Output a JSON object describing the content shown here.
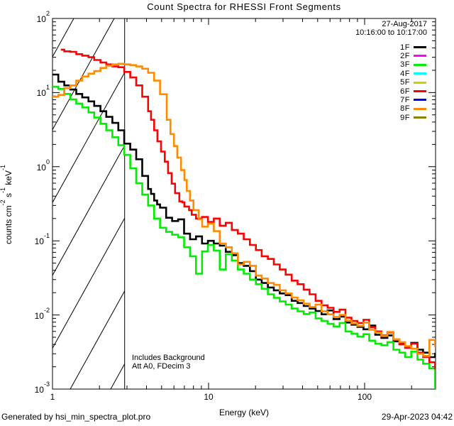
{
  "title": "Count Spectra for RHESSI Front Segments",
  "header": {
    "date": "27-Aug-2017",
    "time_range": "10:16:00 to 10:17:00"
  },
  "legend": [
    {
      "id": "1F",
      "label": "1F",
      "color": "#000000"
    },
    {
      "id": "2F",
      "label": "2F",
      "color": "#ff00ff"
    },
    {
      "id": "3F",
      "label": "3F",
      "color": "#00ee00"
    },
    {
      "id": "4F",
      "label": "4F",
      "color": "#00ffff"
    },
    {
      "id": "5F",
      "label": "5F",
      "color": "#cdcd00"
    },
    {
      "id": "6F",
      "label": "6F",
      "color": "#ff0000"
    },
    {
      "id": "7F",
      "label": "7F",
      "color": "#0000ff"
    },
    {
      "id": "8F",
      "label": "8F",
      "color": "#ff8c00"
    },
    {
      "id": "9F",
      "label": "9F",
      "color": "#8b8000"
    }
  ],
  "annotations": {
    "line1": "Includes Background",
    "line2": "Att A0, FDecim 3"
  },
  "footer": {
    "left": "Generated by hsi_min_spectra_plot.pro",
    "right": "29-Apr-2023 04:42"
  },
  "chart_data": {
    "type": "line",
    "subtype": "histogram-steps-loglog",
    "xlabel": "Energy (keV)",
    "ylabel": "counts cm^-2 s^-1 keV^-1",
    "ylabel_parts": [
      {
        "t": "counts cm"
      },
      {
        "sup": "-2"
      },
      {
        "t": " s"
      },
      {
        "sup": "-1"
      },
      {
        "t": " keV"
      },
      {
        "sup": "-1"
      }
    ],
    "xlim": [
      1,
      285
    ],
    "ylim": [
      0.001,
      100
    ],
    "x_ticks": [
      1,
      10,
      100
    ],
    "y_tick_exponents": [
      2,
      1,
      0,
      -1,
      -2,
      -3
    ],
    "grid": false,
    "legend_position": "top-right-inside",
    "hatched_region_kev": [
      1.0,
      2.9
    ],
    "hatch_note": "diagonal-hatched background region below 3 keV",
    "series": [
      {
        "name": "1F",
        "color": "#000000",
        "visible": true,
        "points": [
          [
            1.0,
            17.5
          ],
          [
            1.09,
            14.0
          ],
          [
            1.19,
            12.5
          ],
          [
            1.3,
            11.0
          ],
          [
            1.42,
            9.6
          ],
          [
            1.55,
            8.6
          ],
          [
            1.7,
            7.6
          ],
          [
            1.85,
            6.6
          ],
          [
            2.03,
            5.6
          ],
          [
            2.21,
            4.7
          ],
          [
            2.42,
            3.9
          ],
          [
            2.64,
            3.1
          ],
          [
            2.88,
            2.05
          ],
          [
            3.15,
            1.7
          ],
          [
            3.44,
            1.26
          ],
          [
            3.76,
            0.75
          ],
          [
            4.1,
            0.5
          ],
          [
            4.28,
            0.43
          ],
          [
            4.48,
            0.35
          ],
          [
            4.68,
            0.31
          ],
          [
            4.89,
            0.28
          ],
          [
            5.35,
            0.205
          ],
          [
            5.84,
            0.185
          ],
          [
            6.38,
            0.195
          ],
          [
            6.97,
            0.125
          ],
          [
            7.61,
            0.105
          ],
          [
            8.31,
            0.115
          ],
          [
            9.08,
            0.092
          ],
          [
            9.91,
            0.1
          ],
          [
            10.8,
            0.092
          ],
          [
            11.8,
            0.086
          ],
          [
            12.9,
            0.071
          ],
          [
            14.1,
            0.064
          ],
          [
            15.4,
            0.05
          ],
          [
            16.8,
            0.046
          ],
          [
            18.4,
            0.039
          ],
          [
            20.1,
            0.03
          ],
          [
            21.9,
            0.027
          ],
          [
            24.0,
            0.0235
          ],
          [
            26.2,
            0.0215
          ],
          [
            28.6,
            0.0195
          ],
          [
            31.2,
            0.0185
          ],
          [
            34.1,
            0.0155
          ],
          [
            37.2,
            0.0145
          ],
          [
            40.7,
            0.0132
          ],
          [
            44.4,
            0.0122
          ],
          [
            48.5,
            0.0113
          ],
          [
            53.0,
            0.0102
          ],
          [
            57.9,
            0.0115
          ],
          [
            63.2,
            0.0088
          ],
          [
            69.1,
            0.0095
          ],
          [
            75.4,
            0.0079
          ],
          [
            82.4,
            0.0074
          ],
          [
            90.0,
            0.0069
          ],
          [
            98.3,
            0.0064
          ],
          [
            107,
            0.0072
          ],
          [
            117,
            0.0054
          ],
          [
            128,
            0.0049
          ],
          [
            140,
            0.0053
          ],
          [
            153,
            0.0044
          ],
          [
            167,
            0.0041
          ],
          [
            182,
            0.0037
          ],
          [
            199,
            0.0042
          ],
          [
            218,
            0.0034
          ],
          [
            237,
            0.0031
          ],
          [
            260,
            0.0027
          ],
          [
            283,
            0.003
          ]
        ]
      },
      {
        "name": "3F",
        "color": "#00ee00",
        "visible": true,
        "points": [
          [
            1.0,
            12.0
          ],
          [
            1.09,
            11.2
          ],
          [
            1.19,
            9.6
          ],
          [
            1.3,
            8.1
          ],
          [
            1.42,
            7.1
          ],
          [
            1.55,
            6.3
          ],
          [
            1.7,
            5.4
          ],
          [
            1.85,
            4.6
          ],
          [
            2.03,
            3.8
          ],
          [
            2.21,
            3.1
          ],
          [
            2.42,
            2.5
          ],
          [
            2.64,
            1.95
          ],
          [
            2.88,
            1.45
          ],
          [
            3.15,
            0.95
          ],
          [
            3.44,
            0.6
          ],
          [
            3.76,
            0.42
          ],
          [
            4.1,
            0.3
          ],
          [
            4.48,
            0.2
          ],
          [
            4.89,
            0.15
          ],
          [
            5.35,
            0.132
          ],
          [
            5.84,
            0.121
          ],
          [
            6.38,
            0.112
          ],
          [
            6.97,
            0.082
          ],
          [
            7.61,
            0.062
          ],
          [
            8.31,
            0.036
          ],
          [
            9.08,
            0.072
          ],
          [
            9.91,
            0.088
          ],
          [
            10.8,
            0.074
          ],
          [
            11.8,
            0.041
          ],
          [
            12.9,
            0.066
          ],
          [
            14.1,
            0.054
          ],
          [
            15.4,
            0.041
          ],
          [
            16.8,
            0.036
          ],
          [
            18.4,
            0.03
          ],
          [
            20.1,
            0.026
          ],
          [
            21.9,
            0.0225
          ],
          [
            24.0,
            0.019
          ],
          [
            26.2,
            0.017
          ],
          [
            28.6,
            0.0152
          ],
          [
            31.2,
            0.0138
          ],
          [
            34.1,
            0.0122
          ],
          [
            37.2,
            0.0112
          ],
          [
            40.7,
            0.0103
          ],
          [
            44.4,
            0.0108
          ],
          [
            48.5,
            0.009
          ],
          [
            53.0,
            0.0083
          ],
          [
            57.9,
            0.0076
          ],
          [
            63.2,
            0.007
          ],
          [
            69.1,
            0.0078
          ],
          [
            75.4,
            0.006
          ],
          [
            82.4,
            0.0056
          ],
          [
            90.0,
            0.0051
          ],
          [
            98.3,
            0.0055
          ],
          [
            107,
            0.0045
          ],
          [
            117,
            0.0041
          ],
          [
            128,
            0.0039
          ],
          [
            140,
            0.0043
          ],
          [
            153,
            0.0034
          ],
          [
            167,
            0.0031
          ],
          [
            182,
            0.0027
          ],
          [
            199,
            0.0032
          ],
          [
            218,
            0.0025
          ],
          [
            237,
            0.0022
          ],
          [
            260,
            0.0019
          ],
          [
            283,
            0.001
          ]
        ]
      },
      {
        "name": "6F",
        "color": "#ff0000",
        "visible": true,
        "points": [
          [
            1.13,
            38
          ],
          [
            1.19,
            36
          ],
          [
            1.3,
            35.5
          ],
          [
            1.42,
            33
          ],
          [
            1.55,
            31.5
          ],
          [
            1.7,
            30
          ],
          [
            1.85,
            27.5
          ],
          [
            2.03,
            25.5
          ],
          [
            2.21,
            24
          ],
          [
            2.42,
            22.5
          ],
          [
            2.64,
            22
          ],
          [
            2.88,
            19
          ],
          [
            3.15,
            16
          ],
          [
            3.44,
            12.5
          ],
          [
            3.76,
            8.8
          ],
          [
            4.1,
            5.6
          ],
          [
            4.28,
            4.3
          ],
          [
            4.48,
            3.1
          ],
          [
            4.7,
            2.2
          ],
          [
            4.96,
            1.6
          ],
          [
            5.24,
            1.17
          ],
          [
            5.5,
            0.82
          ],
          [
            5.8,
            0.59
          ],
          [
            6.1,
            0.44
          ],
          [
            6.5,
            0.34
          ],
          [
            6.8,
            0.33
          ],
          [
            7.0,
            0.29
          ],
          [
            7.5,
            0.26
          ],
          [
            7.8,
            0.225
          ],
          [
            8.31,
            0.2
          ],
          [
            9.08,
            0.21
          ],
          [
            9.91,
            0.18
          ],
          [
            10.8,
            0.2
          ],
          [
            11.8,
            0.16
          ],
          [
            12.9,
            0.175
          ],
          [
            14.1,
            0.14
          ],
          [
            15.4,
            0.125
          ],
          [
            16.8,
            0.105
          ],
          [
            18.4,
            0.088
          ],
          [
            20.1,
            0.075
          ],
          [
            21.9,
            0.062
          ],
          [
            24.0,
            0.057
          ],
          [
            26.2,
            0.048
          ],
          [
            28.6,
            0.041
          ],
          [
            31.2,
            0.035
          ],
          [
            34.1,
            0.029
          ],
          [
            37.2,
            0.026
          ],
          [
            40.7,
            0.022
          ],
          [
            44.4,
            0.019
          ],
          [
            48.5,
            0.0155
          ],
          [
            53.0,
            0.0135
          ],
          [
            57.9,
            0.0125
          ],
          [
            63.2,
            0.011
          ],
          [
            69.1,
            0.0118
          ],
          [
            75.4,
            0.0092
          ],
          [
            82.4,
            0.0083
          ],
          [
            90.0,
            0.0078
          ],
          [
            98.3,
            0.0086
          ],
          [
            107,
            0.0068
          ],
          [
            117,
            0.006
          ],
          [
            128,
            0.0053
          ],
          [
            140,
            0.0058
          ],
          [
            153,
            0.0046
          ],
          [
            167,
            0.004
          ],
          [
            182,
            0.0036
          ],
          [
            199,
            0.0041
          ],
          [
            218,
            0.0031
          ],
          [
            237,
            0.0027
          ],
          [
            260,
            0.0023
          ],
          [
            283,
            0.0019
          ]
        ]
      },
      {
        "name": "8F",
        "color": "#ff8c00",
        "visible": true,
        "points": [
          [
            1.0,
            8.8
          ],
          [
            1.09,
            9.3
          ],
          [
            1.19,
            11.5
          ],
          [
            1.3,
            12.5
          ],
          [
            1.42,
            14.5
          ],
          [
            1.55,
            16.5
          ],
          [
            1.7,
            18.0
          ],
          [
            1.85,
            19.5
          ],
          [
            2.03,
            21.5
          ],
          [
            2.21,
            23.0
          ],
          [
            2.42,
            24.0
          ],
          [
            2.64,
            24.5
          ],
          [
            2.88,
            24.0
          ],
          [
            3.15,
            23.5
          ],
          [
            3.44,
            22.5
          ],
          [
            3.76,
            21.0
          ],
          [
            4.1,
            18.5
          ],
          [
            4.48,
            14.5
          ],
          [
            4.89,
            9.5
          ],
          [
            5.4,
            4.3
          ],
          [
            5.7,
            2.76
          ],
          [
            6.0,
            1.9
          ],
          [
            6.3,
            1.33
          ],
          [
            6.66,
            0.9
          ],
          [
            7.0,
            0.66
          ],
          [
            7.25,
            0.47
          ],
          [
            7.6,
            0.35
          ],
          [
            8.0,
            0.26
          ],
          [
            8.65,
            0.195
          ],
          [
            9.1,
            0.155
          ],
          [
            9.91,
            0.17
          ],
          [
            10.8,
            0.135
          ],
          [
            11.8,
            0.092
          ],
          [
            12.9,
            0.082
          ],
          [
            14.1,
            0.068
          ],
          [
            15.4,
            0.048
          ],
          [
            16.8,
            0.052
          ],
          [
            18.4,
            0.046
          ],
          [
            20.1,
            0.034
          ],
          [
            21.9,
            0.031
          ],
          [
            24.0,
            0.027
          ],
          [
            26.2,
            0.0255
          ],
          [
            28.6,
            0.0215
          ],
          [
            31.2,
            0.0195
          ],
          [
            34.1,
            0.0172
          ],
          [
            37.2,
            0.0158
          ],
          [
            40.7,
            0.0142
          ],
          [
            44.4,
            0.0128
          ],
          [
            48.5,
            0.0138
          ],
          [
            53.0,
            0.0112
          ],
          [
            57.9,
            0.0102
          ],
          [
            63.2,
            0.0094
          ],
          [
            69.1,
            0.01
          ],
          [
            75.4,
            0.0084
          ],
          [
            82.4,
            0.0077
          ],
          [
            90.0,
            0.0071
          ],
          [
            98.3,
            0.0079
          ],
          [
            107,
            0.0063
          ],
          [
            117,
            0.0058
          ],
          [
            128,
            0.0052
          ],
          [
            140,
            0.0059
          ],
          [
            153,
            0.0047
          ],
          [
            167,
            0.0043
          ],
          [
            182,
            0.0038
          ],
          [
            199,
            0.0035
          ],
          [
            218,
            0.003
          ],
          [
            237,
            0.0028
          ],
          [
            260,
            0.0046
          ],
          [
            283,
            0.0038
          ]
        ]
      }
    ],
    "legend_only_series": [
      "2F",
      "4F",
      "5F",
      "7F",
      "9F"
    ]
  }
}
